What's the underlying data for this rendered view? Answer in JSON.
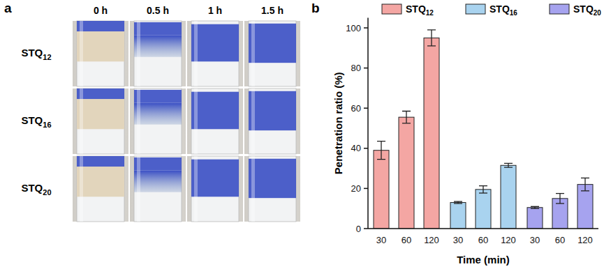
{
  "panel_a": {
    "label": "a",
    "columns": [
      "0 h",
      "0.5 h",
      "1 h",
      "1.5 h"
    ],
    "rows": [
      "STQ12",
      "STQ16",
      "STQ20"
    ]
  },
  "chart_data": {
    "label": "b",
    "type": "bar",
    "x_label": "Time (min)",
    "y_label": "Penetration ratio (%)",
    "categories": [
      "30",
      "60",
      "120"
    ],
    "series": [
      {
        "name": "STQ12",
        "color": "#f4a6a3",
        "values": [
          39,
          55.5,
          95
        ],
        "errors": [
          4.5,
          3,
          4
        ]
      },
      {
        "name": "STQ16",
        "color": "#a9d3ef",
        "values": [
          13,
          19.5,
          31.5
        ],
        "errors": [
          0.5,
          1.8,
          1
        ]
      },
      {
        "name": "STQ20",
        "color": "#a6a3ef",
        "values": [
          10.5,
          15,
          22
        ],
        "errors": [
          0.5,
          2.5,
          3.2
        ]
      }
    ],
    "ylim": [
      0,
      105
    ],
    "yticks": [
      0,
      20,
      40,
      60,
      80,
      100
    ],
    "grid": false,
    "legend": "top"
  }
}
